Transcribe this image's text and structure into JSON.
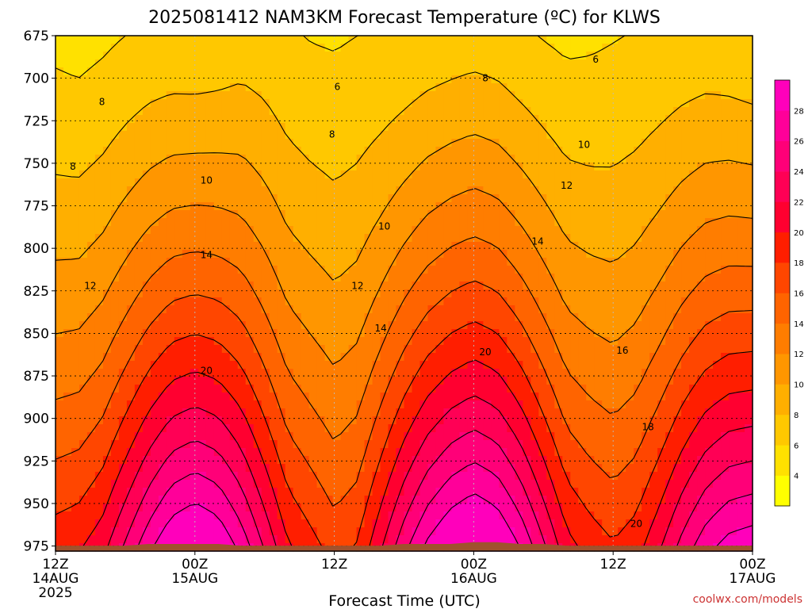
{
  "chart_data": {
    "type": "heatmap",
    "title": "2025081412 NAM3KM Forecast Temperature (ºC) for KLWS",
    "xlabel": "Forecast Time (UTC)",
    "ylabel": "",
    "credit": "coolwx.com/models",
    "x_range_hours": [
      0,
      60
    ],
    "y_range_hpa": [
      675,
      978
    ],
    "y_ticks": [
      {
        "value": 675,
        "label": "675"
      },
      {
        "value": 700,
        "label": "700"
      },
      {
        "value": 725,
        "label": "725"
      },
      {
        "value": 750,
        "label": "750"
      },
      {
        "value": 775,
        "label": "775"
      },
      {
        "value": 800,
        "label": "800"
      },
      {
        "value": 825,
        "label": "825"
      },
      {
        "value": 850,
        "label": "850"
      },
      {
        "value": 875,
        "label": "875"
      },
      {
        "value": 900,
        "label": "900"
      },
      {
        "value": 925,
        "label": "925"
      },
      {
        "value": 950,
        "label": "950"
      },
      {
        "value": 975,
        "label": "975"
      }
    ],
    "x_ticks": [
      {
        "hour": 0,
        "lines": [
          "12Z",
          "14AUG",
          "2025"
        ]
      },
      {
        "hour": 12,
        "lines": [
          "00Z",
          "15AUG"
        ]
      },
      {
        "hour": 24,
        "lines": [
          "12Z"
        ]
      },
      {
        "hour": 36,
        "lines": [
          "00Z",
          "16AUG"
        ]
      },
      {
        "hour": 48,
        "lines": [
          "12Z"
        ]
      },
      {
        "hour": 60,
        "lines": [
          "00Z",
          "17AUG"
        ]
      }
    ],
    "colorbar": {
      "levels": [
        2,
        4,
        6,
        8,
        10,
        12,
        14,
        16,
        18,
        20,
        22,
        24,
        26,
        28,
        30
      ],
      "labels": [
        "4",
        "6",
        "8",
        "10",
        "12",
        "14",
        "16",
        "18",
        "20",
        "22",
        "24",
        "26",
        "28"
      ],
      "colors": [
        "#ffff00",
        "#ffe100",
        "#ffc800",
        "#ffaf00",
        "#ff9600",
        "#ff7d00",
        "#ff6400",
        "#ff4600",
        "#ff1e00",
        "#ff0030",
        "#ff0055",
        "#ff0078",
        "#ff0099",
        "#ff00bb"
      ]
    },
    "profile_hours": [
      0,
      2,
      4,
      6,
      8,
      10,
      12,
      14,
      16,
      18,
      20,
      22,
      24,
      26,
      28,
      30,
      32,
      34,
      36,
      38,
      40,
      42,
      44,
      46,
      48,
      50,
      52,
      54,
      56,
      58,
      60
    ],
    "surface_temp_c": [
      19.0,
      19.5,
      21.0,
      24.0,
      27.0,
      29.5,
      30.5,
      29.5,
      27.0,
      23.5,
      20.0,
      18.5,
      17.0,
      18.0,
      21.5,
      25.0,
      28.0,
      30.0,
      31.0,
      30.0,
      27.5,
      24.0,
      20.5,
      19.0,
      18.0,
      19.0,
      21.5,
      24.5,
      27.0,
      28.5,
      29.0
    ],
    "surface_pressure_hpa": [
      972,
      972,
      972,
      972,
      971,
      971,
      971,
      971,
      972,
      972,
      972,
      972,
      972,
      972,
      972,
      971,
      971,
      971,
      970,
      970,
      971,
      971,
      972,
      972,
      972,
      972,
      972,
      972,
      972,
      972,
      972
    ],
    "temp_at_675hpa_c": [
      5.5,
      5.3,
      5.6,
      6.0,
      6.3,
      6.4,
      6.3,
      6.5,
      6.9,
      6.7,
      6.2,
      5.9,
      5.8,
      6.0,
      6.1,
      6.3,
      6.6,
      6.8,
      7.0,
      6.8,
      6.3,
      5.9,
      5.6,
      5.7,
      5.9,
      6.1,
      6.3,
      6.5,
      6.6,
      6.4,
      6.1
    ],
    "ground_level_hpa": 978,
    "contour_values": [
      6,
      8,
      10,
      12,
      14,
      16,
      18,
      20,
      22,
      24,
      26,
      28
    ],
    "contour_labels": [
      {
        "text": "6",
        "hour": 24.0,
        "hpa": 705,
        "ha": "left"
      },
      {
        "text": "6",
        "hour": 46.5,
        "hpa": 689,
        "ha": "center"
      },
      {
        "text": "8",
        "hour": 4.0,
        "hpa": 714,
        "ha": "center"
      },
      {
        "text": "8",
        "hour": 1.5,
        "hpa": 752,
        "ha": "center"
      },
      {
        "text": "8",
        "hour": 23.8,
        "hpa": 733,
        "ha": "center"
      },
      {
        "text": "8",
        "hour": 37.0,
        "hpa": 700,
        "ha": "center"
      },
      {
        "text": "10",
        "hour": 13.0,
        "hpa": 760,
        "ha": "center"
      },
      {
        "text": "10",
        "hour": 28.3,
        "hpa": 787,
        "ha": "center"
      },
      {
        "text": "10",
        "hour": 45.5,
        "hpa": 739,
        "ha": "center"
      },
      {
        "text": "12",
        "hour": 3.0,
        "hpa": 822,
        "ha": "center"
      },
      {
        "text": "12",
        "hour": 26.0,
        "hpa": 822,
        "ha": "center"
      },
      {
        "text": "12",
        "hour": 44.0,
        "hpa": 763,
        "ha": "center"
      },
      {
        "text": "14",
        "hour": 13.0,
        "hpa": 804,
        "ha": "center"
      },
      {
        "text": "14",
        "hour": 28.0,
        "hpa": 847,
        "ha": "center"
      },
      {
        "text": "14",
        "hour": 41.5,
        "hpa": 796,
        "ha": "center"
      },
      {
        "text": "16",
        "hour": 48.8,
        "hpa": 860,
        "ha": "center"
      },
      {
        "text": "18",
        "hour": 51.0,
        "hpa": 905,
        "ha": "center"
      },
      {
        "text": "20",
        "hour": 13.0,
        "hpa": 872,
        "ha": "center"
      },
      {
        "text": "20",
        "hour": 37.0,
        "hpa": 861,
        "ha": "center"
      },
      {
        "text": "20",
        "hour": 50.0,
        "hpa": 962,
        "ha": "center"
      }
    ],
    "grid": true,
    "legend": "right colorbar"
  }
}
